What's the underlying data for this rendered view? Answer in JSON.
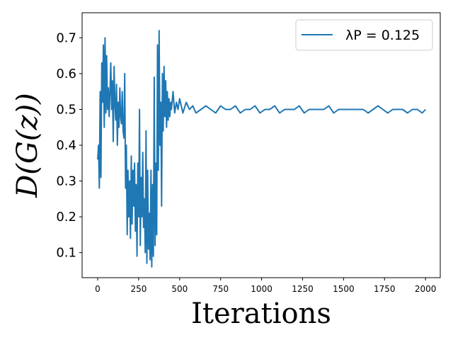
{
  "chart_data": {
    "type": "line",
    "xlabel": "Iterations",
    "ylabel": "D(G(z))",
    "xlim": [
      -95,
      2090
    ],
    "ylim": [
      0.03,
      0.77
    ],
    "x_ticks": [
      0,
      250,
      500,
      750,
      1000,
      1250,
      1500,
      1750,
      2000
    ],
    "y_ticks": [
      0.1,
      0.2,
      0.3,
      0.4,
      0.5,
      0.6,
      0.7
    ],
    "x_tick_labels": [
      "0",
      "250",
      "500",
      "750",
      "1000",
      "1250",
      "1500",
      "1750",
      "2000"
    ],
    "y_tick_labels": [
      "0.1",
      "0.2",
      "0.3",
      "0.4",
      "0.5",
      "0.6",
      "0.7"
    ],
    "legend_position": "top-right",
    "grid": false,
    "series": [
      {
        "name": "λP = 0.125",
        "color": "#1f77b4",
        "x": [
          0,
          5,
          10,
          15,
          20,
          25,
          30,
          35,
          40,
          45,
          50,
          55,
          60,
          65,
          70,
          75,
          80,
          85,
          90,
          95,
          100,
          105,
          110,
          115,
          120,
          125,
          130,
          135,
          140,
          145,
          150,
          155,
          160,
          165,
          170,
          175,
          180,
          185,
          190,
          195,
          200,
          205,
          210,
          215,
          220,
          225,
          230,
          235,
          240,
          245,
          250,
          255,
          260,
          265,
          270,
          275,
          280,
          285,
          290,
          295,
          300,
          305,
          310,
          315,
          320,
          325,
          330,
          335,
          340,
          345,
          350,
          355,
          360,
          365,
          370,
          375,
          380,
          385,
          390,
          395,
          400,
          405,
          410,
          415,
          420,
          425,
          430,
          435,
          440,
          445,
          450,
          460,
          470,
          480,
          490,
          500,
          520,
          540,
          560,
          580,
          600,
          630,
          660,
          690,
          720,
          750,
          780,
          810,
          840,
          870,
          900,
          930,
          960,
          990,
          1020,
          1050,
          1080,
          1110,
          1140,
          1170,
          1200,
          1230,
          1260,
          1290,
          1320,
          1350,
          1380,
          1410,
          1440,
          1470,
          1500,
          1530,
          1560,
          1590,
          1620,
          1650,
          1680,
          1710,
          1740,
          1770,
          1800,
          1830,
          1860,
          1890,
          1920,
          1950,
          1980,
          2000
        ],
        "y": [
          0.36,
          0.4,
          0.28,
          0.55,
          0.31,
          0.63,
          0.52,
          0.68,
          0.45,
          0.7,
          0.49,
          0.65,
          0.5,
          0.56,
          0.48,
          0.55,
          0.63,
          0.5,
          0.58,
          0.41,
          0.62,
          0.52,
          0.47,
          0.57,
          0.4,
          0.52,
          0.45,
          0.56,
          0.48,
          0.46,
          0.55,
          0.44,
          0.42,
          0.6,
          0.28,
          0.4,
          0.15,
          0.33,
          0.2,
          0.3,
          0.14,
          0.37,
          0.18,
          0.33,
          0.23,
          0.35,
          0.16,
          0.29,
          0.09,
          0.35,
          0.2,
          0.5,
          0.12,
          0.31,
          0.2,
          0.38,
          0.17,
          0.25,
          0.1,
          0.44,
          0.07,
          0.33,
          0.11,
          0.21,
          0.08,
          0.33,
          0.06,
          0.29,
          0.09,
          0.59,
          0.12,
          0.35,
          0.15,
          0.68,
          0.33,
          0.72,
          0.4,
          0.52,
          0.23,
          0.6,
          0.44,
          0.62,
          0.48,
          0.58,
          0.45,
          0.55,
          0.47,
          0.53,
          0.48,
          0.52,
          0.5,
          0.55,
          0.49,
          0.52,
          0.5,
          0.53,
          0.49,
          0.52,
          0.5,
          0.51,
          0.49,
          0.5,
          0.51,
          0.5,
          0.49,
          0.51,
          0.5,
          0.5,
          0.51,
          0.49,
          0.5,
          0.5,
          0.51,
          0.49,
          0.5,
          0.5,
          0.51,
          0.49,
          0.5,
          0.5,
          0.5,
          0.51,
          0.49,
          0.5,
          0.5,
          0.5,
          0.5,
          0.51,
          0.49,
          0.5,
          0.5,
          0.5,
          0.5,
          0.5,
          0.5,
          0.49,
          0.5,
          0.51,
          0.5,
          0.49,
          0.5,
          0.5,
          0.5,
          0.49,
          0.5,
          0.5,
          0.49,
          0.5
        ]
      }
    ]
  }
}
